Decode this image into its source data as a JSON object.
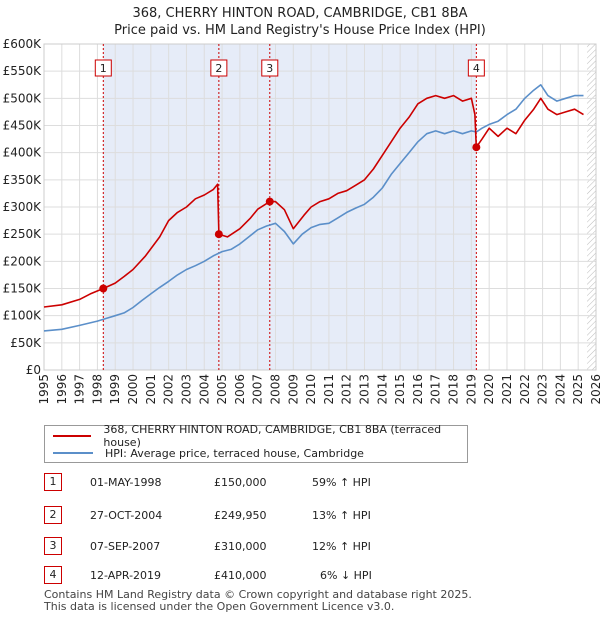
{
  "title_line1": "368, CHERRY HINTON ROAD, CAMBRIDGE, CB1 8BA",
  "title_line2": "Price paid vs. HM Land Registry's House Price Index (HPI)",
  "colors": {
    "price": "#cc0000",
    "hpi": "#5b8fc9",
    "band": "#e6ecf8",
    "grid": "#dddddd"
  },
  "chart_data": {
    "type": "line",
    "xlim": [
      1995,
      2026
    ],
    "ylim": [
      0,
      600000
    ],
    "y_ticks": [
      {
        "value": 0,
        "label": "£0"
      },
      {
        "value": 50000,
        "label": "£50K"
      },
      {
        "value": 100000,
        "label": "£100K"
      },
      {
        "value": 150000,
        "label": "£150K"
      },
      {
        "value": 200000,
        "label": "£200K"
      },
      {
        "value": 250000,
        "label": "£250K"
      },
      {
        "value": 300000,
        "label": "£300K"
      },
      {
        "value": 350000,
        "label": "£350K"
      },
      {
        "value": 400000,
        "label": "£400K"
      },
      {
        "value": 450000,
        "label": "£450K"
      },
      {
        "value": 500000,
        "label": "£500K"
      },
      {
        "value": 550000,
        "label": "£550K"
      },
      {
        "value": 600000,
        "label": "£600K"
      }
    ],
    "x_ticks": [
      "1995",
      "1996",
      "1997",
      "1998",
      "1999",
      "2000",
      "2001",
      "2002",
      "2003",
      "2004",
      "2005",
      "2006",
      "2007",
      "2008",
      "2009",
      "2010",
      "2011",
      "2012",
      "2013",
      "2014",
      "2015",
      "2016",
      "2017",
      "2018",
      "2019",
      "2020",
      "2021",
      "2022",
      "2023",
      "2024",
      "2025",
      "2026"
    ],
    "shaded_band": [
      1998.33,
      2019.28
    ],
    "series": [
      {
        "name": "368, CHERRY HINTON ROAD, CAMBRIDGE, CB1 8BA (terraced house)",
        "color": "#cc0000",
        "points": [
          [
            1995.0,
            116000
          ],
          [
            1996.0,
            120000
          ],
          [
            1997.0,
            130000
          ],
          [
            1997.6,
            140000
          ],
          [
            1998.33,
            150000
          ],
          [
            1999.0,
            160000
          ],
          [
            1999.5,
            172000
          ],
          [
            2000.0,
            185000
          ],
          [
            2000.7,
            210000
          ],
          [
            2001.5,
            245000
          ],
          [
            2002.0,
            275000
          ],
          [
            2002.5,
            290000
          ],
          [
            2003.0,
            300000
          ],
          [
            2003.5,
            315000
          ],
          [
            2004.0,
            322000
          ],
          [
            2004.5,
            332000
          ],
          [
            2004.75,
            342000
          ],
          [
            2004.82,
            249950
          ],
          [
            2005.3,
            245000
          ],
          [
            2006.0,
            260000
          ],
          [
            2006.6,
            280000
          ],
          [
            2007.0,
            296000
          ],
          [
            2007.68,
            310000
          ],
          [
            2008.0,
            310000
          ],
          [
            2008.5,
            295000
          ],
          [
            2009.0,
            260000
          ],
          [
            2009.6,
            285000
          ],
          [
            2010.0,
            300000
          ],
          [
            2010.5,
            310000
          ],
          [
            2011.0,
            315000
          ],
          [
            2011.5,
            325000
          ],
          [
            2012.0,
            330000
          ],
          [
            2012.5,
            340000
          ],
          [
            2013.0,
            350000
          ],
          [
            2013.5,
            370000
          ],
          [
            2014.0,
            395000
          ],
          [
            2014.5,
            420000
          ],
          [
            2015.0,
            445000
          ],
          [
            2015.5,
            465000
          ],
          [
            2016.0,
            490000
          ],
          [
            2016.5,
            500000
          ],
          [
            2017.0,
            505000
          ],
          [
            2017.5,
            500000
          ],
          [
            2018.0,
            505000
          ],
          [
            2018.5,
            495000
          ],
          [
            2019.0,
            500000
          ],
          [
            2019.2,
            470000
          ],
          [
            2019.28,
            410000
          ],
          [
            2019.6,
            425000
          ],
          [
            2020.0,
            445000
          ],
          [
            2020.5,
            430000
          ],
          [
            2021.0,
            445000
          ],
          [
            2021.5,
            435000
          ],
          [
            2022.0,
            460000
          ],
          [
            2022.5,
            480000
          ],
          [
            2022.9,
            500000
          ],
          [
            2023.3,
            480000
          ],
          [
            2023.8,
            470000
          ],
          [
            2024.3,
            475000
          ],
          [
            2024.8,
            480000
          ],
          [
            2025.3,
            470000
          ]
        ]
      },
      {
        "name": "HPI: Average price, terraced house, Cambridge",
        "color": "#5b8fc9",
        "points": [
          [
            1995.0,
            72000
          ],
          [
            1996.0,
            75000
          ],
          [
            1997.0,
            82000
          ],
          [
            1998.0,
            90000
          ],
          [
            1998.5,
            95000
          ],
          [
            1999.0,
            100000
          ],
          [
            1999.5,
            105000
          ],
          [
            2000.0,
            115000
          ],
          [
            2000.5,
            128000
          ],
          [
            2001.0,
            140000
          ],
          [
            2001.5,
            152000
          ],
          [
            2002.0,
            163000
          ],
          [
            2002.5,
            175000
          ],
          [
            2003.0,
            185000
          ],
          [
            2003.5,
            192000
          ],
          [
            2004.0,
            200000
          ],
          [
            2004.5,
            210000
          ],
          [
            2005.0,
            218000
          ],
          [
            2005.5,
            222000
          ],
          [
            2006.0,
            232000
          ],
          [
            2006.5,
            245000
          ],
          [
            2007.0,
            258000
          ],
          [
            2007.5,
            265000
          ],
          [
            2008.0,
            270000
          ],
          [
            2008.5,
            255000
          ],
          [
            2009.0,
            232000
          ],
          [
            2009.5,
            250000
          ],
          [
            2010.0,
            262000
          ],
          [
            2010.5,
            268000
          ],
          [
            2011.0,
            270000
          ],
          [
            2011.5,
            280000
          ],
          [
            2012.0,
            290000
          ],
          [
            2012.5,
            298000
          ],
          [
            2013.0,
            305000
          ],
          [
            2013.5,
            318000
          ],
          [
            2014.0,
            335000
          ],
          [
            2014.5,
            360000
          ],
          [
            2015.0,
            380000
          ],
          [
            2015.5,
            400000
          ],
          [
            2016.0,
            420000
          ],
          [
            2016.5,
            435000
          ],
          [
            2017.0,
            440000
          ],
          [
            2017.5,
            435000
          ],
          [
            2018.0,
            440000
          ],
          [
            2018.5,
            435000
          ],
          [
            2019.0,
            440000
          ],
          [
            2019.28,
            438000
          ],
          [
            2019.6,
            445000
          ],
          [
            2020.0,
            452000
          ],
          [
            2020.5,
            458000
          ],
          [
            2021.0,
            470000
          ],
          [
            2021.5,
            480000
          ],
          [
            2022.0,
            500000
          ],
          [
            2022.5,
            515000
          ],
          [
            2022.9,
            525000
          ],
          [
            2023.3,
            505000
          ],
          [
            2023.8,
            495000
          ],
          [
            2024.3,
            500000
          ],
          [
            2024.8,
            505000
          ],
          [
            2025.3,
            505000
          ]
        ]
      }
    ],
    "markers": [
      {
        "label": "1",
        "x": 1998.33,
        "y": 150000
      },
      {
        "label": "2",
        "x": 2004.82,
        "y": 249950
      },
      {
        "label": "3",
        "x": 2007.68,
        "y": 310000
      },
      {
        "label": "4",
        "x": 2019.28,
        "y": 410000
      }
    ],
    "legend_position": "bottom"
  },
  "legend": [
    {
      "label": "368, CHERRY HINTON ROAD, CAMBRIDGE, CB1 8BA (terraced house)"
    },
    {
      "label": "HPI: Average price, terraced house, Cambridge"
    }
  ],
  "sales": [
    {
      "num": "1",
      "date": "01-MAY-1998",
      "price": "£150,000",
      "hpi": "59% ↑ HPI"
    },
    {
      "num": "2",
      "date": "27-OCT-2004",
      "price": "£249,950",
      "hpi": "13% ↑ HPI"
    },
    {
      "num": "3",
      "date": "07-SEP-2007",
      "price": "£310,000",
      "hpi": "12% ↑ HPI"
    },
    {
      "num": "4",
      "date": "12-APR-2019",
      "price": "£410,000",
      "hpi": "6% ↓ HPI"
    }
  ],
  "footer": {
    "line1": "Contains HM Land Registry data © Crown copyright and database right 2025.",
    "line2": "This data is licensed under the Open Government Licence v3.0."
  }
}
